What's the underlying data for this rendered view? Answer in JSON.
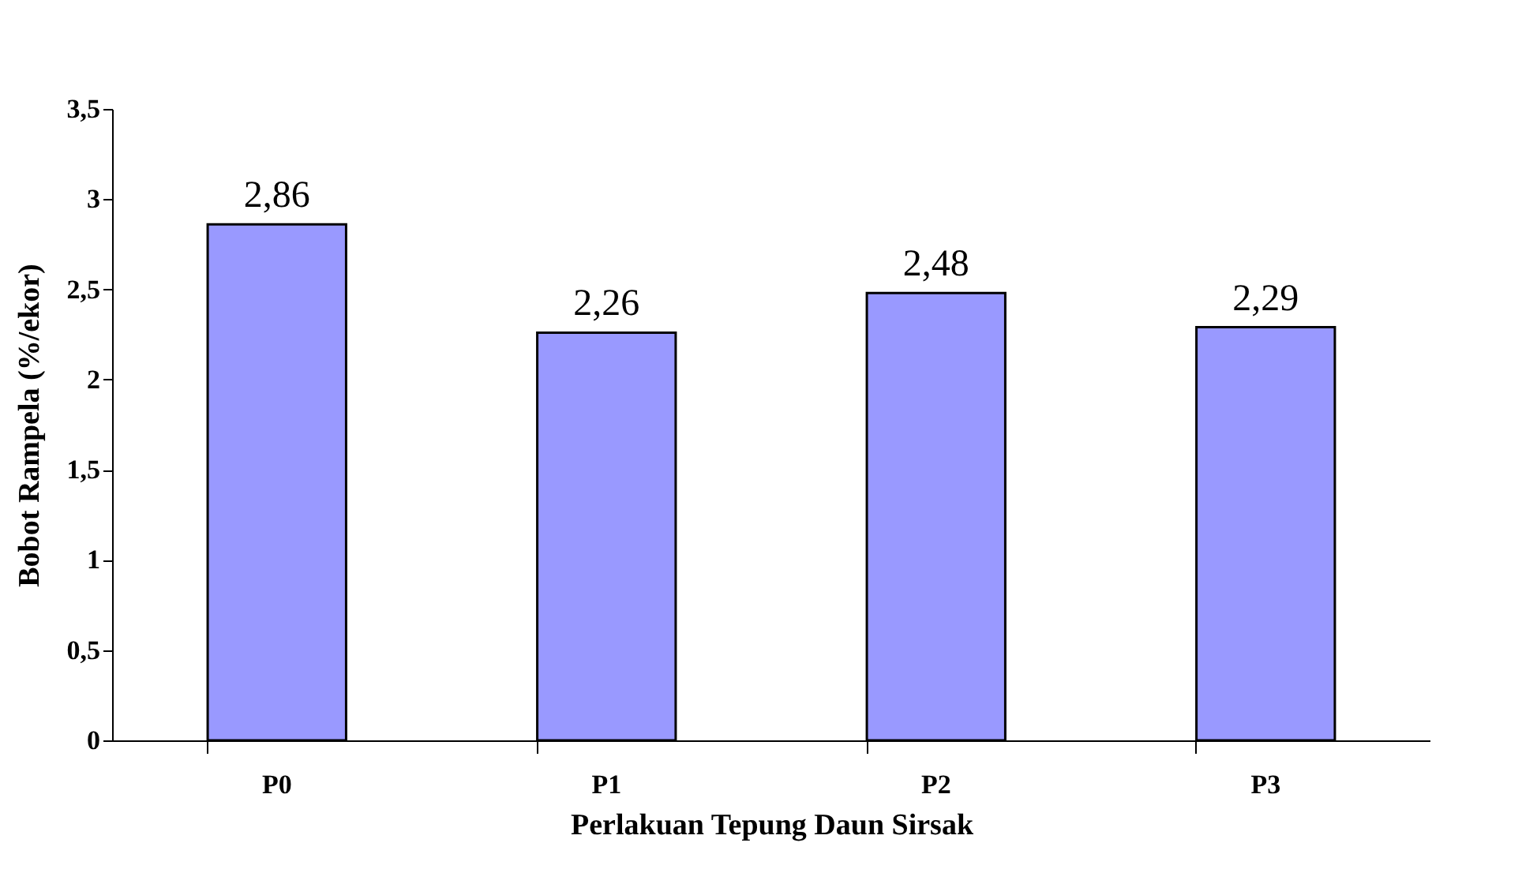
{
  "chart_data": {
    "type": "bar",
    "xlabel": "Perlakuan Tepung Daun Sirsak",
    "ylabel": "Bobot Rampela (%/ekor)",
    "categories": [
      "P0",
      "P1",
      "P2",
      "P3"
    ],
    "values": [
      2.86,
      2.26,
      2.48,
      2.29
    ],
    "value_labels": [
      "2,86",
      "2,26",
      "2,48",
      "2,29"
    ],
    "color": "#9999ff",
    "ylim": [
      0,
      3.5
    ],
    "yticks": [
      0,
      {
        "value": 0.5,
        "label": "0,5"
      },
      1,
      {
        "value": 1.5,
        "label": "1,5"
      },
      2,
      {
        "value": 2.5,
        "label": "2,5"
      },
      3,
      {
        "value": 3.5,
        "label": "3,5"
      }
    ],
    "grid": false
  }
}
